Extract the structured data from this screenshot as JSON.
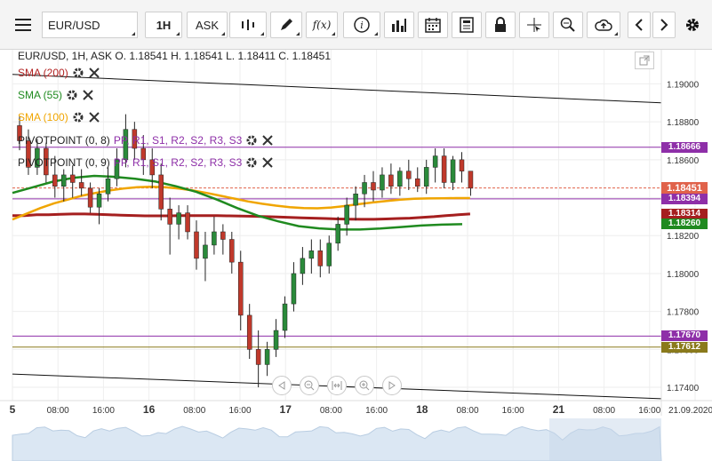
{
  "toolbar": {
    "symbol": "EUR/USD",
    "timeframe": "1H",
    "price_side": "ASK"
  },
  "ohlc_line": "EUR/USD, 1H, ASK   O. 1.18541 H. 1.18541 L. 1.18411 C. 1.18451",
  "indicators": [
    {
      "label": "SMA (200)",
      "color": "#b22222"
    },
    {
      "label": "SMA (55)",
      "color": "#1f8a1f"
    },
    {
      "label": "SMA (100)",
      "color": "#f0a500"
    },
    {
      "label": "PIVOTPOINT (0, 8)",
      "extra": "PP, R1, S1, R2, S2, R3, S3"
    },
    {
      "label": "PIVOTPOINT (0, 9)",
      "extra": "PP, R1, S1, R2, S2, R3, S3"
    }
  ],
  "price_axis": [
    "1.19000",
    "1.18800",
    "1.18600",
    "1.18400",
    "1.18200",
    "1.18000",
    "1.17800",
    "1.17600",
    "1.17400"
  ],
  "price_tags": [
    {
      "text": "1.18666",
      "bg": "#8e2fa8"
    },
    {
      "text": "1.18451",
      "bg": "#e0624a"
    },
    {
      "text": "1.18394",
      "bg": "#8e2fa8"
    },
    {
      "text": "1.18314",
      "bg": "#a51f1f"
    },
    {
      "text": "1.18260",
      "bg": "#1f8a1f"
    },
    {
      "text": "1.17670",
      "bg": "#8e2fa8"
    },
    {
      "text": "1.17612",
      "bg": "#8a7a1c"
    }
  ],
  "time_axis": [
    "5",
    "08:00",
    "16:00",
    "16",
    "08:00",
    "16:00",
    "17",
    "08:00",
    "16:00",
    "18",
    "08:00",
    "16:00",
    "21",
    "08:00",
    "16:00",
    "21.09.2020"
  ],
  "colors": {
    "bull": "#2a8a3a",
    "bear": "#c0392b",
    "grid": "#eeeeee"
  },
  "chart_data": {
    "type": "candlestick",
    "symbol": "EUR/USD",
    "interval": "1H",
    "ylim": [
      1.1733,
      1.1918
    ],
    "sma200": [
      1.18305,
      1.18305,
      1.1831,
      1.1831,
      1.18312,
      1.18314,
      1.18314,
      1.18312,
      1.1831,
      1.18308,
      1.18306,
      1.18304,
      1.18304,
      1.18304,
      1.18305,
      1.18305,
      1.18305,
      1.18305,
      1.18304,
      1.18303,
      1.18302,
      1.183,
      1.18298,
      1.18296,
      1.18294,
      1.18292,
      1.1829,
      1.18288,
      1.18287,
      1.18286,
      1.18286,
      1.18288,
      1.1829,
      1.18292,
      1.18296,
      1.183,
      1.18305,
      1.1831,
      1.18314
    ],
    "sma100": [
      1.18285,
      1.18315,
      1.18345,
      1.1837,
      1.1839,
      1.1841,
      1.18425,
      1.18438,
      1.18448,
      1.18455,
      1.18458,
      1.18455,
      1.18448,
      1.18438,
      1.18425,
      1.1841,
      1.18395,
      1.1838,
      1.18368,
      1.18358,
      1.1835,
      1.18345,
      1.18344,
      1.18348,
      1.18356,
      1.18366,
      1.18375,
      1.18383,
      1.1839,
      1.18394,
      1.18396,
      1.18397,
      1.18398,
      1.18398
    ],
    "sma55": [
      1.18425,
      1.18455,
      1.18485,
      1.18505,
      1.18515,
      1.1851,
      1.185,
      1.18485,
      1.1846,
      1.1843,
      1.1839,
      1.18345,
      1.18305,
      1.18275,
      1.1825,
      1.18238,
      1.18232,
      1.18232,
      1.18237,
      1.18245,
      1.18253,
      1.18258,
      1.1826
    ],
    "candles": [
      [
        1.1878,
        1.1883,
        1.1865,
        1.187
      ],
      [
        1.187,
        1.1876,
        1.1852,
        1.1856
      ],
      [
        1.1856,
        1.1871,
        1.1852,
        1.1866
      ],
      [
        1.1866,
        1.1869,
        1.1848,
        1.1852
      ],
      [
        1.1852,
        1.1862,
        1.184,
        1.1846
      ],
      [
        1.1846,
        1.1855,
        1.1838,
        1.1852
      ],
      [
        1.1852,
        1.1857,
        1.184,
        1.1848
      ],
      [
        1.1848,
        1.1855,
        1.1841,
        1.1845
      ],
      [
        1.1845,
        1.1848,
        1.1832,
        1.1835
      ],
      [
        1.1835,
        1.1845,
        1.1826,
        1.1842
      ],
      [
        1.1842,
        1.1856,
        1.1838,
        1.185
      ],
      [
        1.185,
        1.1866,
        1.1846,
        1.186
      ],
      [
        1.186,
        1.1884,
        1.1856,
        1.1876
      ],
      [
        1.1876,
        1.188,
        1.186,
        1.1866
      ],
      [
        1.1866,
        1.1873,
        1.1852,
        1.186
      ],
      [
        1.186,
        1.1866,
        1.1845,
        1.1852
      ],
      [
        1.1852,
        1.1858,
        1.1828,
        1.1834
      ],
      [
        1.1834,
        1.184,
        1.181,
        1.1826
      ],
      [
        1.1826,
        1.1836,
        1.1818,
        1.1832
      ],
      [
        1.1832,
        1.1836,
        1.1818,
        1.1822
      ],
      [
        1.1822,
        1.1828,
        1.1802,
        1.1808
      ],
      [
        1.1808,
        1.1822,
        1.1796,
        1.1815
      ],
      [
        1.1815,
        1.183,
        1.181,
        1.1822
      ],
      [
        1.1822,
        1.1826,
        1.181,
        1.1818
      ],
      [
        1.1818,
        1.1822,
        1.18,
        1.1806
      ],
      [
        1.1806,
        1.1812,
        1.177,
        1.1778
      ],
      [
        1.1778,
        1.1784,
        1.1755,
        1.176
      ],
      [
        1.176,
        1.177,
        1.174,
        1.1752
      ],
      [
        1.1752,
        1.1764,
        1.1746,
        1.176
      ],
      [
        1.176,
        1.1776,
        1.1756,
        1.177
      ],
      [
        1.177,
        1.1788,
        1.1766,
        1.1784
      ],
      [
        1.1784,
        1.1806,
        1.178,
        1.18
      ],
      [
        1.18,
        1.1814,
        1.1794,
        1.1808
      ],
      [
        1.1808,
        1.1818,
        1.18,
        1.1812
      ],
      [
        1.1812,
        1.1818,
        1.1798,
        1.1804
      ],
      [
        1.1804,
        1.182,
        1.18,
        1.1816
      ],
      [
        1.1816,
        1.183,
        1.1812,
        1.1826
      ],
      [
        1.1826,
        1.184,
        1.182,
        1.1836
      ],
      [
        1.1836,
        1.1846,
        1.1828,
        1.1842
      ],
      [
        1.1842,
        1.1852,
        1.1835,
        1.1848
      ],
      [
        1.1848,
        1.1854,
        1.1838,
        1.1844
      ],
      [
        1.1844,
        1.1856,
        1.184,
        1.1852
      ],
      [
        1.1852,
        1.1858,
        1.1842,
        1.1846
      ],
      [
        1.1846,
        1.1856,
        1.1841,
        1.1854
      ],
      [
        1.1854,
        1.186,
        1.1844,
        1.185
      ],
      [
        1.185,
        1.1856,
        1.1843,
        1.1846
      ],
      [
        1.1846,
        1.186,
        1.1842,
        1.1856
      ],
      [
        1.1856,
        1.1866,
        1.1848,
        1.1862
      ],
      [
        1.1862,
        1.1866,
        1.1845,
        1.1848
      ],
      [
        1.1848,
        1.1862,
        1.1844,
        1.186
      ],
      [
        1.186,
        1.1864,
        1.1848,
        1.1854
      ],
      [
        1.1854,
        1.1854,
        1.1841,
        1.1845
      ]
    ],
    "lines": [
      {
        "name": "upper-trend",
        "from": 1.1905,
        "to": 1.189
      },
      {
        "name": "lower-trend",
        "from": 1.1747,
        "to": 1.1734
      }
    ],
    "hlines": [
      {
        "value": 1.18666,
        "color": "#8e2fa8"
      },
      {
        "value": 1.18451,
        "color": "#e0624a",
        "dashed": true
      },
      {
        "value": 1.18394,
        "color": "#8e2fa8"
      },
      {
        "value": 1.1767,
        "color": "#8e2fa8"
      },
      {
        "value": 1.17612,
        "color": "#8a7a1c"
      }
    ]
  }
}
